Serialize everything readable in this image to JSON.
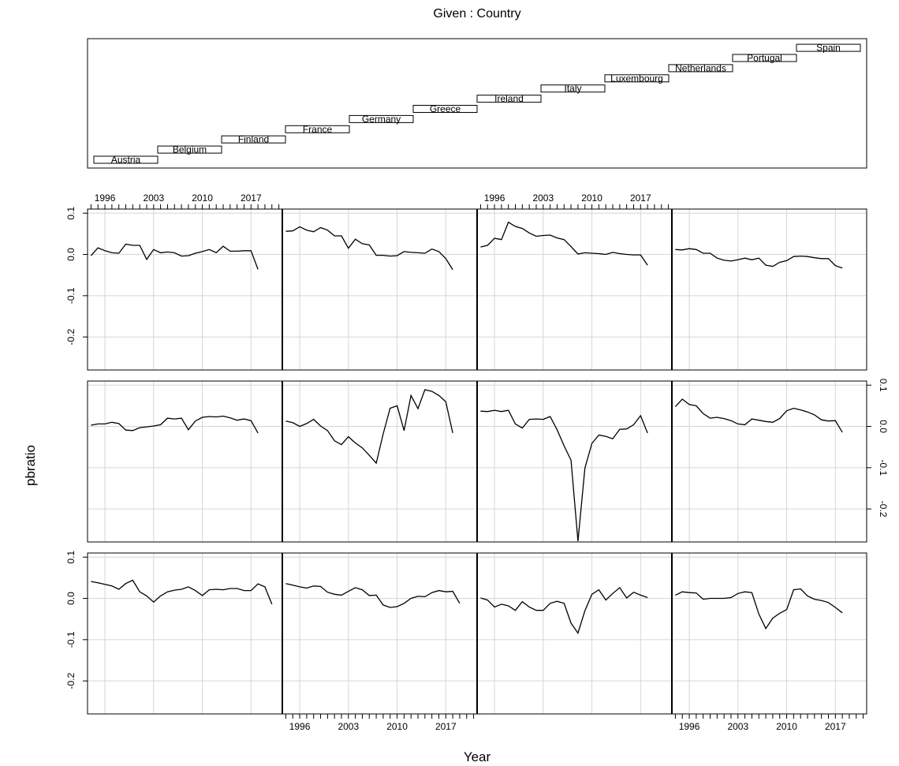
{
  "chart_data": {
    "type": "line",
    "title": "Given : Country",
    "xlabel": "Year",
    "ylabel": "pbratio",
    "x_ticks": [
      "1996",
      "2003",
      "2010",
      "2017"
    ],
    "y_ticks": [
      "-0.2",
      "-0.1",
      "0.0",
      "0.1"
    ],
    "xlim": [
      1993.5,
      2021.5
    ],
    "ylim": [
      -0.28,
      0.11
    ],
    "grid": true,
    "years": [
      1994,
      1995,
      1996,
      1997,
      1998,
      1999,
      2000,
      2001,
      2002,
      2003,
      2004,
      2005,
      2006,
      2007,
      2008,
      2009,
      2010,
      2011,
      2012,
      2013,
      2014,
      2015,
      2016,
      2017,
      2018,
      2019,
      2020,
      2021
    ],
    "countries": [
      "Austria",
      "Belgium",
      "Finland",
      "France",
      "Germany",
      "Greece",
      "Ireland",
      "Italy",
      "Luxembourg",
      "Netherlands",
      "Portugal",
      "Spain"
    ],
    "series": [
      {
        "name": "Austria",
        "values": [
          0.041,
          0.038,
          0.034,
          0.03,
          0.022,
          0.036,
          0.044,
          0.016,
          0.006,
          -0.009,
          0.006,
          0.016,
          0.02,
          0.022,
          0.028,
          0.019,
          0.007,
          0.021,
          0.022,
          0.021,
          0.024,
          0.024,
          0.019,
          0.019,
          0.035,
          0.028,
          -0.014
        ]
      },
      {
        "name": "Belgium",
        "values": [
          0.036,
          0.032,
          0.028,
          0.025,
          0.03,
          0.029,
          0.015,
          0.01,
          0.008,
          0.017,
          0.026,
          0.021,
          0.007,
          0.008,
          -0.016,
          -0.022,
          -0.02,
          -0.012,
          0.0,
          0.005,
          0.004,
          0.014,
          0.019,
          0.016,
          0.017,
          -0.012
        ]
      },
      {
        "name": "Finland",
        "values": [
          0.001,
          -0.004,
          -0.021,
          -0.014,
          -0.018,
          -0.029,
          -0.008,
          -0.021,
          -0.029,
          -0.029,
          -0.012,
          -0.007,
          -0.012,
          -0.06,
          -0.084,
          -0.03,
          0.01,
          0.021,
          -0.004,
          0.012,
          0.026,
          0.001,
          0.015,
          0.008,
          0.002
        ]
      },
      {
        "name": "France",
        "values": [
          0.008,
          0.016,
          0.014,
          0.013,
          -0.002,
          0.0,
          0.0,
          0.0,
          0.002,
          0.012,
          0.016,
          0.014,
          -0.038,
          -0.073,
          -0.048,
          -0.036,
          -0.027,
          0.021,
          0.023,
          0.006,
          -0.002,
          -0.005,
          -0.01,
          -0.022,
          -0.035
        ]
      },
      {
        "name": "Germany",
        "values": [
          0.003,
          0.006,
          0.006,
          0.01,
          0.007,
          -0.009,
          -0.01,
          -0.003,
          -0.001,
          0.001,
          0.004,
          0.02,
          0.018,
          0.02,
          -0.008,
          0.013,
          0.022,
          0.024,
          0.023,
          0.025,
          0.021,
          0.015,
          0.018,
          0.014,
          -0.016
        ]
      },
      {
        "name": "Greece",
        "values": [
          0.013,
          0.009,
          0.0,
          0.007,
          0.017,
          0.001,
          -0.01,
          -0.035,
          -0.044,
          -0.025,
          -0.04,
          -0.052,
          -0.07,
          -0.089,
          -0.018,
          0.044,
          0.05,
          -0.01,
          0.075,
          0.043,
          0.089,
          0.085,
          0.075,
          0.06,
          -0.016
        ]
      },
      {
        "name": "Ireland",
        "values": [
          0.037,
          0.036,
          0.039,
          0.036,
          0.039,
          0.006,
          -0.004,
          0.017,
          0.018,
          0.017,
          0.024,
          -0.008,
          -0.047,
          -0.082,
          -0.278,
          -0.101,
          -0.041,
          -0.021,
          -0.024,
          -0.03,
          -0.007,
          -0.006,
          0.004,
          0.026,
          -0.016
        ]
      },
      {
        "name": "Italy",
        "values": [
          0.048,
          0.066,
          0.053,
          0.05,
          0.031,
          0.02,
          0.022,
          0.019,
          0.014,
          0.006,
          0.004,
          0.018,
          0.015,
          0.012,
          0.01,
          0.019,
          0.038,
          0.044,
          0.04,
          0.035,
          0.028,
          0.016,
          0.013,
          0.014,
          -0.014
        ]
      },
      {
        "name": "Luxembourg",
        "values": [
          -0.003,
          0.016,
          0.009,
          0.004,
          0.003,
          0.025,
          0.022,
          0.022,
          -0.012,
          0.012,
          0.004,
          0.006,
          0.004,
          -0.004,
          -0.003,
          0.003,
          0.007,
          0.012,
          0.004,
          0.02,
          0.008,
          0.008,
          0.009,
          0.009,
          -0.036
        ]
      },
      {
        "name": "Netherlands",
        "values": [
          0.056,
          0.057,
          0.067,
          0.059,
          0.055,
          0.065,
          0.059,
          0.045,
          0.045,
          0.015,
          0.037,
          0.026,
          0.023,
          -0.002,
          -0.002,
          -0.004,
          -0.003,
          0.007,
          0.005,
          0.004,
          0.003,
          0.013,
          0.007,
          -0.01,
          -0.037
        ]
      },
      {
        "name": "Portugal",
        "values": [
          0.018,
          0.022,
          0.039,
          0.036,
          0.078,
          0.068,
          0.063,
          0.052,
          0.044,
          0.046,
          0.047,
          0.04,
          0.036,
          0.019,
          0.001,
          0.004,
          0.003,
          0.002,
          0.0,
          0.005,
          0.002,
          0.0,
          -0.001,
          -0.001,
          -0.026
        ]
      },
      {
        "name": "Spain",
        "values": [
          0.012,
          0.011,
          0.014,
          0.012,
          0.003,
          0.003,
          -0.009,
          -0.014,
          -0.016,
          -0.013,
          -0.009,
          -0.013,
          -0.009,
          -0.026,
          -0.029,
          -0.019,
          -0.015,
          -0.005,
          -0.004,
          -0.005,
          -0.008,
          -0.01,
          -0.01,
          -0.027,
          -0.033
        ]
      }
    ]
  }
}
